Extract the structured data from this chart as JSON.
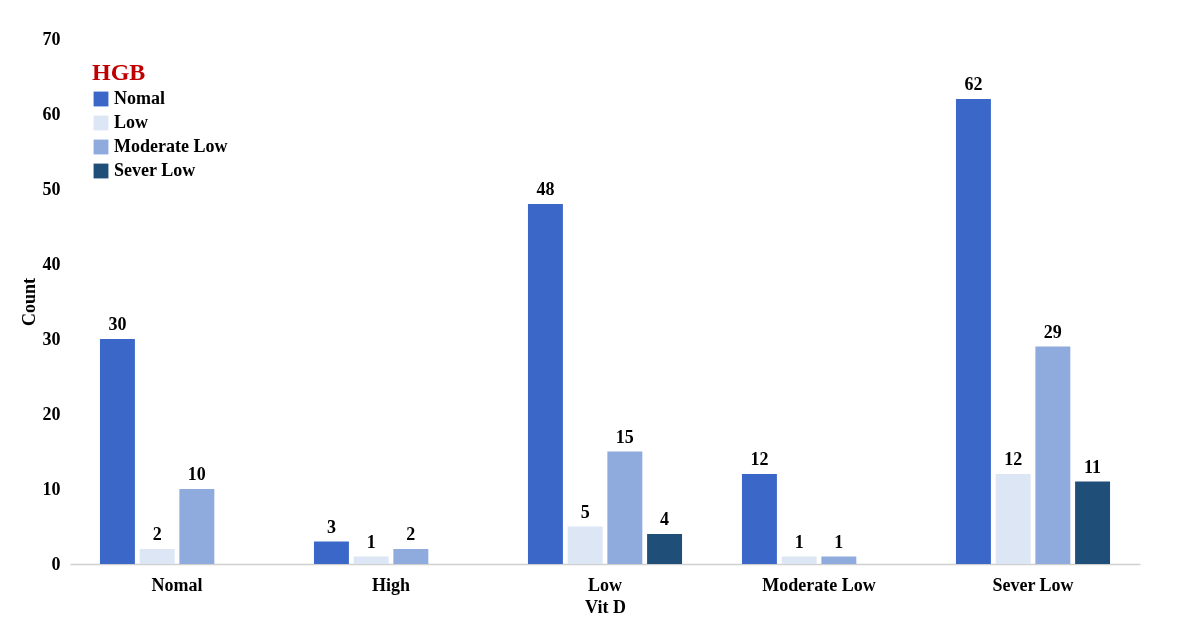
{
  "chart_data": {
    "type": "bar",
    "xlabel": "Vit D",
    "ylabel": "Count",
    "legend_title": "HGB",
    "categories": [
      "Nomal",
      "High",
      "Low",
      "Moderate Low",
      "Sever Low"
    ],
    "series": [
      {
        "name": "Nomal",
        "color": "#3a67c8",
        "values": [
          30,
          3,
          48,
          12,
          62
        ]
      },
      {
        "name": "Low",
        "color": "#dce6f5",
        "values": [
          2,
          1,
          5,
          1,
          12
        ]
      },
      {
        "name": "Moderate Low",
        "color": "#8faadc",
        "values": [
          10,
          2,
          15,
          1,
          29
        ]
      },
      {
        "name": "Sever Low",
        "color": "#1f4e79",
        "values": [
          null,
          null,
          4,
          null,
          11
        ]
      }
    ],
    "ylim": [
      0,
      70
    ],
    "yticks": [
      0,
      10,
      20,
      30,
      40,
      50,
      60,
      70
    ],
    "data_labels": true,
    "legend": "top left",
    "grid": false
  }
}
